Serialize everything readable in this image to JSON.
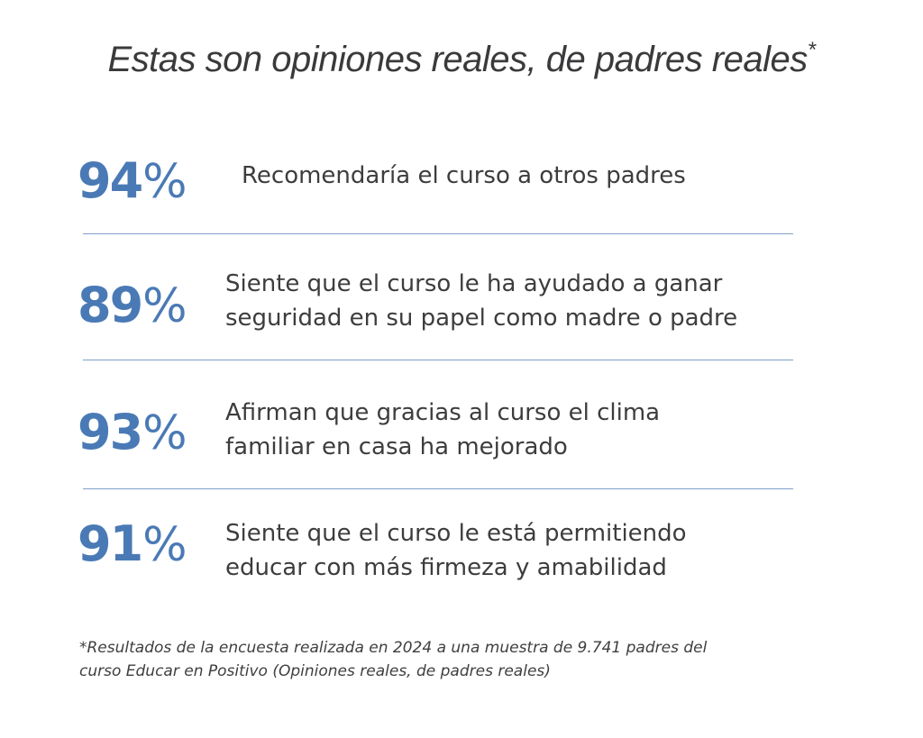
{
  "title": {
    "text": "Estas son opiniones reales, de padres reales",
    "asterisk": "*"
  },
  "stats": [
    {
      "value": "94",
      "unit": "%",
      "lines": [
        "Recomendaría el curso a otros padres"
      ]
    },
    {
      "value": "89",
      "unit": "%",
      "lines": [
        "Siente que el curso le ha ayudado a ganar",
        "seguridad en su papel como madre o padre"
      ]
    },
    {
      "value": "93",
      "unit": "%",
      "lines": [
        "Afirman que gracias al curso el clima",
        "familiar en casa ha mejorado"
      ]
    },
    {
      "value": "91",
      "unit": "%",
      "lines": [
        "Siente que el curso le está permitiendo",
        "educar con más firmeza y amabilidad"
      ]
    }
  ],
  "footnote": {
    "line1": "*Resultados de la encuesta realizada en 2024 a una muestra de 9.741 padres del",
    "line2": "curso Educar en Positivo (Opiniones reales, de padres reales)"
  },
  "colors": {
    "accent": "#4a7ab5",
    "text": "#3d3d3f",
    "divider": "#7f9fc8",
    "background": "#ffffff"
  }
}
